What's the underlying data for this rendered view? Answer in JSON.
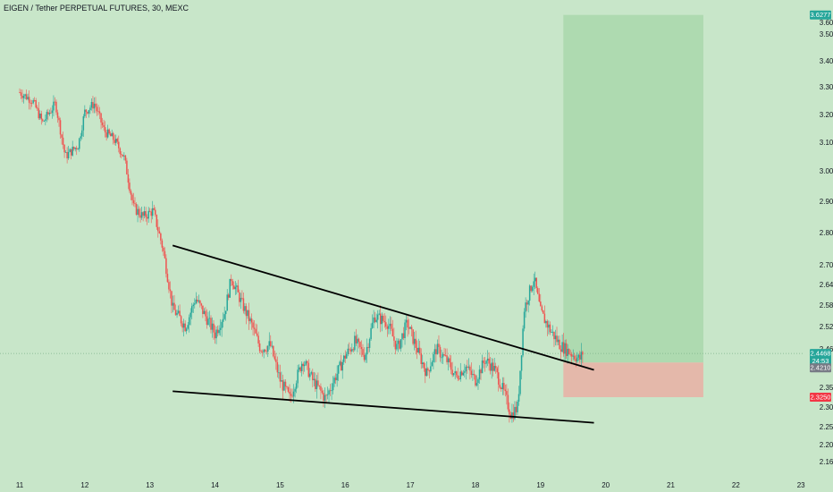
{
  "header": {
    "title": "EIGEN / Tether PERPETUAL FUTURES, 30, MEXC"
  },
  "colors": {
    "background": "#c8e6c9",
    "candle_up": "#26a69a",
    "candle_down": "#ef5350",
    "profit_zone": "#a5d6a7",
    "loss_zone": "#e7b3a6",
    "trendline": "#000000",
    "badge_target": "#26a69a",
    "badge_current": "#26a69a",
    "badge_entry": "#787b86",
    "badge_stop": "#f23645"
  },
  "chart_data": {
    "type": "candlestick",
    "title": "EIGEN / Tether PERPETUAL FUTURES, 30, MEXC",
    "symbol": "EIGEN / Tether PERPETUAL FUTURES",
    "interval": "30",
    "exchange": "MEXC",
    "x_ticks": [
      "11",
      "12",
      "13",
      "14",
      "15",
      "16",
      "17",
      "18",
      "19",
      "20",
      "21",
      "22",
      "23"
    ],
    "y_ticks": [
      "3.6000",
      "3.5000",
      "3.4000",
      "3.3000",
      "3.2000",
      "3.1000",
      "3.0000",
      "2.9000",
      "2.8000",
      "2.7000",
      "2.6400",
      "2.5800",
      "2.5200",
      "2.4600",
      "2.3500",
      "2.3000",
      "2.2500",
      "2.2000",
      "2.1600"
    ],
    "ylim": [
      2.13,
      3.63
    ],
    "price_path": [
      [
        11.0,
        3.28
      ],
      [
        11.2,
        3.25
      ],
      [
        11.35,
        3.17
      ],
      [
        11.55,
        3.24
      ],
      [
        11.7,
        3.05
      ],
      [
        11.9,
        3.09
      ],
      [
        12.0,
        3.21
      ],
      [
        12.15,
        3.24
      ],
      [
        12.3,
        3.14
      ],
      [
        12.45,
        3.11
      ],
      [
        12.6,
        3.05
      ],
      [
        12.75,
        2.88
      ],
      [
        12.9,
        2.85
      ],
      [
        13.05,
        2.87
      ],
      [
        13.2,
        2.75
      ],
      [
        13.35,
        2.57
      ],
      [
        13.55,
        2.52
      ],
      [
        13.7,
        2.6
      ],
      [
        13.85,
        2.55
      ],
      [
        14.0,
        2.5
      ],
      [
        14.15,
        2.56
      ],
      [
        14.25,
        2.66
      ],
      [
        14.4,
        2.59
      ],
      [
        14.55,
        2.53
      ],
      [
        14.7,
        2.46
      ],
      [
        14.85,
        2.47
      ],
      [
        15.0,
        2.37
      ],
      [
        15.15,
        2.32
      ],
      [
        15.35,
        2.43
      ],
      [
        15.5,
        2.37
      ],
      [
        15.7,
        2.32
      ],
      [
        15.85,
        2.38
      ],
      [
        16.0,
        2.44
      ],
      [
        16.15,
        2.48
      ],
      [
        16.3,
        2.44
      ],
      [
        16.45,
        2.55
      ],
      [
        16.65,
        2.53
      ],
      [
        16.8,
        2.46
      ],
      [
        16.95,
        2.53
      ],
      [
        17.1,
        2.46
      ],
      [
        17.25,
        2.39
      ],
      [
        17.4,
        2.46
      ],
      [
        17.55,
        2.43
      ],
      [
        17.7,
        2.38
      ],
      [
        17.85,
        2.41
      ],
      [
        18.0,
        2.37
      ],
      [
        18.15,
        2.43
      ],
      [
        18.3,
        2.4
      ],
      [
        18.45,
        2.33
      ],
      [
        18.55,
        2.28
      ],
      [
        18.65,
        2.3
      ],
      [
        18.75,
        2.57
      ],
      [
        18.9,
        2.66
      ],
      [
        19.0,
        2.56
      ],
      [
        19.15,
        2.51
      ],
      [
        19.3,
        2.47
      ],
      [
        19.45,
        2.45
      ],
      [
        19.6,
        2.43
      ],
      [
        19.65,
        2.45
      ]
    ],
    "annotations": {
      "upper_trendline": {
        "from": [
          13.35,
          2.76
        ],
        "to": [
          19.82,
          2.4
        ]
      },
      "lower_trendline": {
        "from": [
          13.35,
          2.34
        ],
        "to": [
          19.82,
          2.26
        ]
      },
      "long_position": {
        "x_start": 19.35,
        "x_end": 21.5,
        "target": 3.6277,
        "entry": 2.421,
        "stop": 2.325
      }
    },
    "price_labels": {
      "target": "3.6277",
      "current_price": "2.4468",
      "countdown": "24:53",
      "entry": "2.4210",
      "stop": "2.3250"
    },
    "current_price_value": 2.4468
  }
}
